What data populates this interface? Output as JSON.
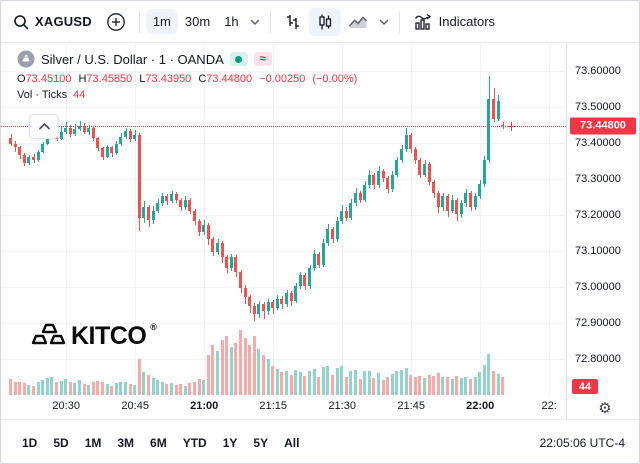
{
  "toolbar": {
    "symbol": "XAGUSD",
    "intervals": [
      {
        "label": "1m",
        "active": true
      },
      {
        "label": "30m",
        "active": false
      },
      {
        "label": "1h",
        "active": false
      }
    ],
    "indicators_label": "Indicators"
  },
  "legend": {
    "title": "Silver / U.S. Dollar · 1 · OANDA",
    "market_status": "open",
    "delayed_symbol": "≈",
    "ohlc": {
      "o_label": "O",
      "o": "73.45100",
      "h_label": "H",
      "h": "73.45850",
      "l_label": "L",
      "l": "73.43950",
      "c_label": "C",
      "c": "73.44800",
      "change": "−0.00250",
      "change_pct": "(−0.00%)"
    },
    "volume_label": "Vol · Ticks",
    "volume_value": "44"
  },
  "watermark": {
    "text": "KITCO",
    "reg": "®"
  },
  "range_tabs": [
    "1D",
    "5D",
    "1M",
    "3M",
    "6M",
    "YTD",
    "1Y",
    "5Y",
    "All"
  ],
  "status_clock": "22:05:06 UTC-4",
  "colors": {
    "up": "#26a69a",
    "down": "#ef5350",
    "volume_up": "#93d3cc",
    "volume_down": "#f7aba9",
    "price_line": "#f23645",
    "grid": "#f0f3fa",
    "axis_text": "#131722"
  },
  "chart_data": {
    "type": "candlestick+volume",
    "symbol": "XAGUSD",
    "title": "Silver / U.S. Dollar",
    "exchange": "OANDA",
    "interval": "1m",
    "start_time": "20:18",
    "end_time": "22:05",
    "current_price": 73.448,
    "current_price_label": "73.44800",
    "current_volume_label": "44",
    "ylim": [
      72.75,
      73.66
    ],
    "price_ticks": [
      {
        "v": 73.6,
        "label": "73.60000"
      },
      {
        "v": 73.5,
        "label": "73.50000"
      },
      {
        "v": 73.4,
        "label": "73.40000"
      },
      {
        "v": 73.3,
        "label": "73.30000"
      },
      {
        "v": 73.2,
        "label": "73.20000"
      },
      {
        "v": 73.1,
        "label": "73.10000"
      },
      {
        "v": 73.0,
        "label": "73.00000"
      },
      {
        "v": 72.9,
        "label": "72.90000"
      },
      {
        "v": 72.8,
        "label": "72.80000"
      }
    ],
    "time_ticks": [
      {
        "i": 12,
        "label": "20:30",
        "bold": false
      },
      {
        "i": 27,
        "label": "20:45",
        "bold": false
      },
      {
        "i": 42,
        "label": "21:00",
        "bold": true
      },
      {
        "i": 57,
        "label": "21:15",
        "bold": false
      },
      {
        "i": 72,
        "label": "21:30",
        "bold": false
      },
      {
        "i": 87,
        "label": "21:45",
        "bold": false
      },
      {
        "i": 102,
        "label": "22:00",
        "bold": true
      },
      {
        "i": 117,
        "label": "22:",
        "bold": false
      }
    ],
    "candles_format": [
      "open",
      "high",
      "low",
      "close",
      "volume_ticks"
    ],
    "candles": [
      [
        73.415,
        73.425,
        73.392,
        73.398,
        38
      ],
      [
        73.398,
        73.405,
        73.375,
        73.388,
        32
      ],
      [
        73.388,
        73.392,
        73.355,
        73.368,
        30
      ],
      [
        73.368,
        73.372,
        73.335,
        73.345,
        28
      ],
      [
        73.345,
        73.368,
        73.34,
        73.362,
        25
      ],
      [
        73.362,
        73.37,
        73.345,
        73.352,
        22
      ],
      [
        73.352,
        73.38,
        73.348,
        73.375,
        30
      ],
      [
        73.375,
        73.402,
        73.372,
        73.398,
        35
      ],
      [
        73.398,
        73.425,
        73.395,
        73.418,
        40
      ],
      [
        73.418,
        73.44,
        73.415,
        73.432,
        42
      ],
      [
        73.432,
        73.438,
        73.405,
        73.412,
        30
      ],
      [
        73.412,
        73.445,
        73.408,
        73.43,
        33
      ],
      [
        73.43,
        73.458,
        73.425,
        73.442,
        38
      ],
      [
        73.442,
        73.45,
        73.418,
        73.425,
        30
      ],
      [
        73.425,
        73.452,
        73.42,
        73.438,
        28
      ],
      [
        73.438,
        73.462,
        73.432,
        73.448,
        35
      ],
      [
        73.448,
        73.455,
        73.425,
        73.43,
        26
      ],
      [
        73.43,
        73.45,
        73.422,
        73.442,
        24
      ],
      [
        73.442,
        73.445,
        73.405,
        73.415,
        30
      ],
      [
        73.415,
        73.418,
        73.378,
        73.385,
        34
      ],
      [
        73.385,
        73.39,
        73.352,
        73.362,
        30
      ],
      [
        73.362,
        73.395,
        73.358,
        73.388,
        26
      ],
      [
        73.388,
        73.392,
        73.362,
        73.372,
        22
      ],
      [
        73.372,
        73.405,
        73.368,
        73.398,
        28
      ],
      [
        73.398,
        73.428,
        73.392,
        73.418,
        30
      ],
      [
        73.418,
        73.442,
        73.412,
        73.432,
        32
      ],
      [
        73.432,
        73.438,
        73.402,
        73.412,
        26
      ],
      [
        73.412,
        73.435,
        73.405,
        73.422,
        24
      ],
      [
        73.422,
        73.428,
        73.155,
        73.192,
        85
      ],
      [
        73.192,
        73.238,
        73.178,
        73.222,
        55
      ],
      [
        73.222,
        73.228,
        73.168,
        73.185,
        48
      ],
      [
        73.185,
        73.225,
        73.175,
        73.212,
        40
      ],
      [
        73.212,
        73.245,
        73.205,
        73.232,
        35
      ],
      [
        73.232,
        73.262,
        73.225,
        73.252,
        32
      ],
      [
        73.252,
        73.258,
        73.228,
        73.238,
        26
      ],
      [
        73.238,
        73.268,
        73.232,
        73.258,
        28
      ],
      [
        73.258,
        73.265,
        73.232,
        73.242,
        24
      ],
      [
        73.242,
        73.248,
        73.212,
        73.222,
        26
      ],
      [
        73.222,
        73.252,
        73.215,
        73.242,
        22
      ],
      [
        73.242,
        73.248,
        73.202,
        73.212,
        28
      ],
      [
        73.212,
        73.218,
        73.172,
        73.182,
        32
      ],
      [
        73.182,
        73.188,
        73.142,
        73.152,
        38
      ],
      [
        73.152,
        73.185,
        73.145,
        73.172,
        35
      ],
      [
        73.172,
        73.178,
        73.118,
        73.132,
        95
      ],
      [
        73.132,
        73.138,
        73.085,
        73.098,
        120
      ],
      [
        73.098,
        73.132,
        73.09,
        73.122,
        105
      ],
      [
        73.122,
        73.128,
        73.068,
        73.082,
        130
      ],
      [
        73.082,
        73.088,
        73.038,
        73.052,
        140
      ],
      [
        73.052,
        73.092,
        73.045,
        73.082,
        115
      ],
      [
        73.082,
        73.088,
        73.028,
        73.042,
        125
      ],
      [
        73.042,
        73.048,
        72.982,
        72.998,
        155
      ],
      [
        72.998,
        73.005,
        72.952,
        72.972,
        135
      ],
      [
        72.972,
        72.978,
        72.928,
        72.948,
        120
      ],
      [
        72.948,
        72.955,
        72.905,
        72.925,
        140
      ],
      [
        72.925,
        72.962,
        72.915,
        72.952,
        110
      ],
      [
        72.952,
        72.958,
        72.912,
        72.932,
        95
      ],
      [
        72.932,
        72.968,
        72.922,
        72.958,
        85
      ],
      [
        72.958,
        72.965,
        72.925,
        72.942,
        70
      ],
      [
        72.942,
        72.978,
        72.935,
        72.968,
        62
      ],
      [
        72.968,
        72.975,
        72.938,
        72.952,
        55
      ],
      [
        72.952,
        72.992,
        72.945,
        72.982,
        58
      ],
      [
        72.982,
        72.988,
        72.948,
        72.962,
        48
      ],
      [
        72.962,
        73.012,
        72.955,
        73.002,
        60
      ],
      [
        73.002,
        73.042,
        72.995,
        73.032,
        55
      ],
      [
        73.032,
        73.038,
        72.992,
        73.002,
        45
      ],
      [
        73.002,
        73.062,
        72.995,
        73.052,
        58
      ],
      [
        73.052,
        73.102,
        73.045,
        73.092,
        62
      ],
      [
        73.092,
        73.098,
        73.052,
        73.062,
        44
      ],
      [
        73.062,
        73.132,
        73.055,
        73.122,
        66
      ],
      [
        73.122,
        73.175,
        73.115,
        73.162,
        70
      ],
      [
        73.162,
        73.168,
        73.122,
        73.132,
        48
      ],
      [
        73.132,
        73.195,
        73.125,
        73.182,
        64
      ],
      [
        73.182,
        73.228,
        73.175,
        73.212,
        68
      ],
      [
        73.212,
        73.222,
        73.182,
        73.192,
        42
      ],
      [
        73.192,
        73.245,
        73.185,
        73.232,
        58
      ],
      [
        73.232,
        73.275,
        73.225,
        73.262,
        60
      ],
      [
        73.262,
        73.268,
        73.232,
        73.242,
        38
      ],
      [
        73.242,
        73.295,
        73.235,
        73.282,
        56
      ],
      [
        73.282,
        73.325,
        73.275,
        73.312,
        58
      ],
      [
        73.312,
        73.318,
        73.272,
        73.282,
        40
      ],
      [
        73.282,
        73.335,
        73.275,
        73.322,
        52
      ],
      [
        73.322,
        73.328,
        73.292,
        73.302,
        36
      ],
      [
        73.302,
        73.308,
        73.262,
        73.272,
        42
      ],
      [
        73.272,
        73.322,
        73.265,
        73.312,
        50
      ],
      [
        73.312,
        73.362,
        73.305,
        73.352,
        58
      ],
      [
        73.352,
        73.395,
        73.345,
        73.382,
        60
      ],
      [
        73.382,
        73.442,
        73.375,
        73.422,
        65
      ],
      [
        73.422,
        73.428,
        73.372,
        73.382,
        48
      ],
      [
        73.382,
        73.388,
        73.342,
        73.352,
        44
      ],
      [
        73.352,
        73.358,
        73.302,
        73.312,
        46
      ],
      [
        73.312,
        73.352,
        73.305,
        73.342,
        40
      ],
      [
        73.342,
        73.348,
        73.282,
        73.292,
        48
      ],
      [
        73.292,
        73.298,
        73.248,
        73.262,
        46
      ],
      [
        73.262,
        73.268,
        73.205,
        73.222,
        52
      ],
      [
        73.222,
        73.262,
        73.212,
        73.252,
        42
      ],
      [
        73.252,
        73.258,
        73.195,
        73.212,
        44
      ],
      [
        73.212,
        73.255,
        73.205,
        73.242,
        38
      ],
      [
        73.242,
        73.248,
        73.182,
        73.202,
        46
      ],
      [
        73.202,
        73.242,
        73.192,
        73.232,
        40
      ],
      [
        73.232,
        73.272,
        73.222,
        73.262,
        44
      ],
      [
        73.262,
        73.268,
        73.212,
        73.222,
        38
      ],
      [
        73.222,
        73.262,
        73.215,
        73.252,
        42
      ],
      [
        73.252,
        73.298,
        73.245,
        73.285,
        55
      ],
      [
        73.285,
        73.365,
        73.278,
        73.352,
        72
      ],
      [
        73.352,
        73.585,
        73.345,
        73.522,
        98
      ],
      [
        73.522,
        73.552,
        73.458,
        73.468,
        58
      ],
      [
        73.468,
        73.532,
        73.462,
        73.518,
        50
      ],
      [
        73.451,
        73.4585,
        73.4395,
        73.448,
        44
      ]
    ]
  }
}
